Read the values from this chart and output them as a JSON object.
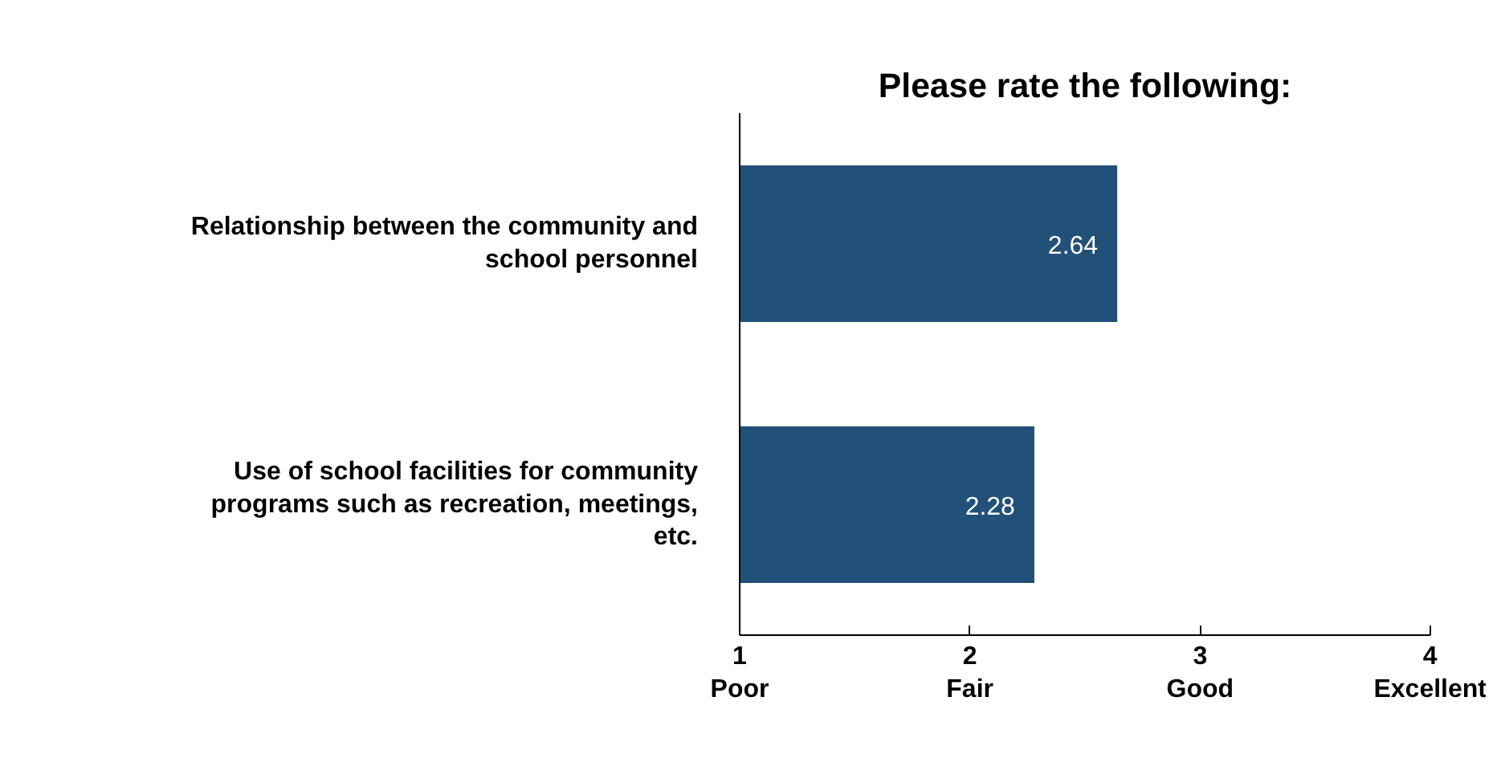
{
  "chart_data": {
    "type": "bar",
    "orientation": "horizontal",
    "title": "Please rate the following:",
    "categories": [
      "Relationship between the community and school personnel",
      "Use of school facilities for community programs such as recreation, meetings, etc."
    ],
    "values": [
      2.64,
      2.28
    ],
    "color": "#215079",
    "data_labels": true,
    "grid": false,
    "xlim": [
      1,
      4
    ],
    "xticks": [
      {
        "value": 1,
        "label": "1\nPoor"
      },
      {
        "value": 2,
        "label": "2\nFair"
      },
      {
        "value": 3,
        "label": "3\nGood"
      },
      {
        "value": 4,
        "label": "4\nExcellent"
      }
    ]
  }
}
